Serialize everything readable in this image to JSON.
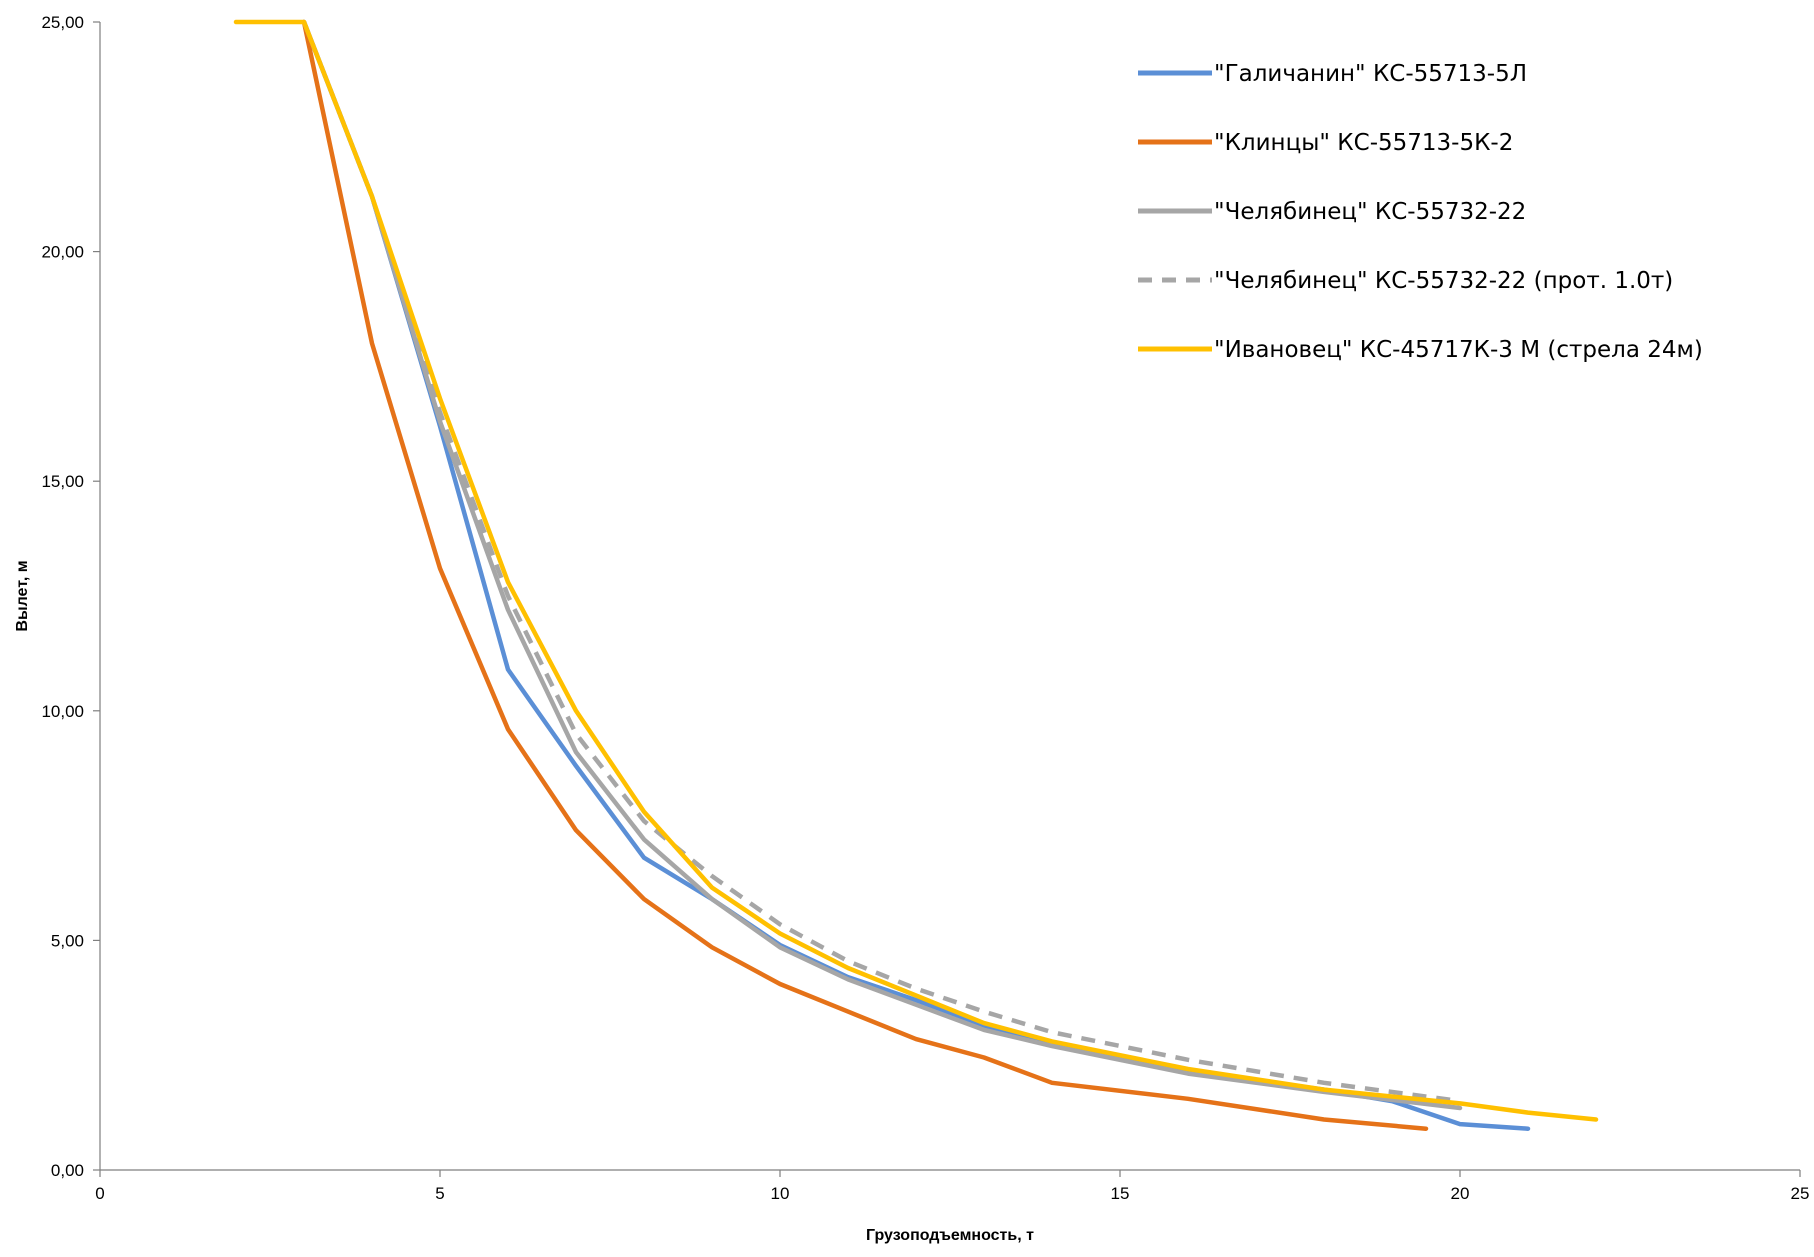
{
  "chart_data": {
    "type": "line",
    "title": "",
    "xlabel": "Грузоподъемность, т",
    "ylabel": "Вылет, м",
    "xlim": [
      0,
      25
    ],
    "ylim": [
      0,
      25
    ],
    "x_ticks": [
      "0",
      "5",
      "10",
      "15",
      "20",
      "25"
    ],
    "y_ticks": [
      "0,00",
      "5,00",
      "10,00",
      "15,00",
      "20,00",
      "25,00"
    ],
    "grid": false,
    "legend_position": "top-right",
    "series": [
      {
        "name": "\"Галичанин\" КС-55713-5Л",
        "color": "#5B8FD6",
        "dash": "solid",
        "points": [
          [
            3,
            25
          ],
          [
            4,
            21.2
          ],
          [
            5,
            16.2
          ],
          [
            6,
            10.9
          ],
          [
            7,
            8.8
          ],
          [
            8,
            6.8
          ],
          [
            9,
            5.9
          ],
          [
            10,
            4.9
          ],
          [
            11,
            4.2
          ],
          [
            12,
            3.7
          ],
          [
            13,
            3.15
          ],
          [
            14,
            2.75
          ],
          [
            16,
            2.15
          ],
          [
            18,
            1.75
          ],
          [
            19,
            1.5
          ],
          [
            20,
            1.0
          ],
          [
            21,
            0.9
          ]
        ]
      },
      {
        "name": "\"Клинцы\" КС-55713-5К-2",
        "color": "#E57218",
        "dash": "solid",
        "points": [
          [
            3,
            25
          ],
          [
            4,
            18.0
          ],
          [
            5,
            13.1
          ],
          [
            6,
            9.6
          ],
          [
            7,
            7.4
          ],
          [
            8,
            5.9
          ],
          [
            9,
            4.85
          ],
          [
            10,
            4.05
          ],
          [
            11,
            3.45
          ],
          [
            12,
            2.85
          ],
          [
            13,
            2.45
          ],
          [
            14,
            1.9
          ],
          [
            16,
            1.55
          ],
          [
            18,
            1.1
          ],
          [
            19.5,
            0.9
          ]
        ]
      },
      {
        "name": "\"Челябинец\" КС-55732-22",
        "color": "#A6A6A6",
        "dash": "solid",
        "points": [
          [
            3,
            25
          ],
          [
            4,
            21.2
          ],
          [
            5,
            16.3
          ],
          [
            6,
            12.2
          ],
          [
            7,
            9.1
          ],
          [
            8,
            7.2
          ],
          [
            9,
            5.9
          ],
          [
            10,
            4.85
          ],
          [
            11,
            4.15
          ],
          [
            12,
            3.6
          ],
          [
            13,
            3.05
          ],
          [
            14,
            2.7
          ],
          [
            16,
            2.1
          ],
          [
            18,
            1.7
          ],
          [
            20,
            1.35
          ]
        ]
      },
      {
        "name": "\"Челябинец\" КС-55732-22 (прот. 1.0т)",
        "color": "#A6A6A6",
        "dash": "dashed",
        "points": [
          [
            3,
            25
          ],
          [
            4,
            21.2
          ],
          [
            5,
            16.5
          ],
          [
            6,
            12.5
          ],
          [
            7,
            9.5
          ],
          [
            8,
            7.6
          ],
          [
            9,
            6.4
          ],
          [
            10,
            5.35
          ],
          [
            11,
            4.55
          ],
          [
            12,
            3.95
          ],
          [
            13,
            3.45
          ],
          [
            14,
            3.0
          ],
          [
            16,
            2.4
          ],
          [
            18,
            1.9
          ],
          [
            20,
            1.5
          ]
        ]
      },
      {
        "name": "\"Ивановец\" КС-45717К-3 М (стрела 24м)",
        "color": "#FFC000",
        "dash": "solid",
        "points": [
          [
            2,
            25
          ],
          [
            3,
            25
          ],
          [
            4,
            21.2
          ],
          [
            5,
            16.8
          ],
          [
            6,
            12.8
          ],
          [
            7,
            10.0
          ],
          [
            8,
            7.8
          ],
          [
            9,
            6.15
          ],
          [
            10,
            5.15
          ],
          [
            11,
            4.4
          ],
          [
            12,
            3.8
          ],
          [
            13,
            3.2
          ],
          [
            14,
            2.8
          ],
          [
            16,
            2.2
          ],
          [
            18,
            1.75
          ],
          [
            20,
            1.45
          ],
          [
            21,
            1.25
          ],
          [
            22,
            1.1
          ]
        ]
      }
    ]
  }
}
